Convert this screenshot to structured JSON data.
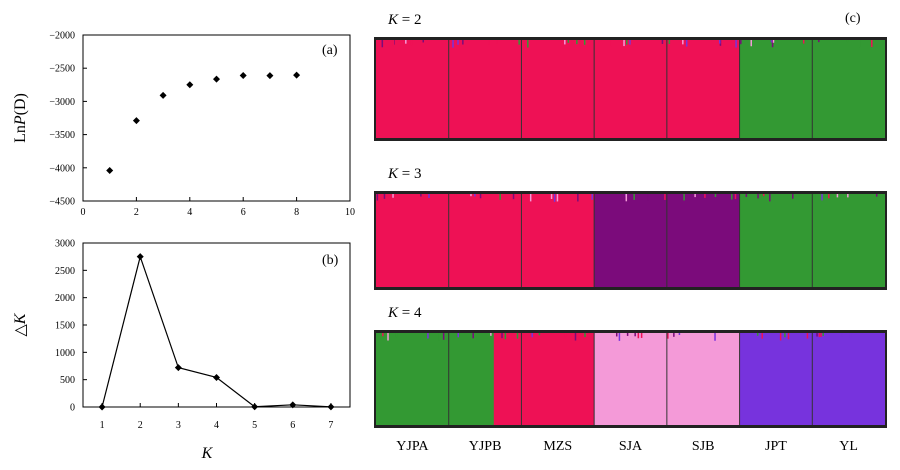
{
  "chart_data": [
    {
      "panel": "(a)",
      "type": "scatter",
      "xlabel": "",
      "ylabel_prefix": "Ln",
      "ylabel_italic": "P",
      "ylabel_suffix": "(D)",
      "xlim": [
        0,
        10
      ],
      "ylim": [
        -4500,
        -2000
      ],
      "xticks": [
        0,
        2,
        4,
        6,
        8,
        10
      ],
      "yticks": [
        -2000,
        -2500,
        -3000,
        -3500,
        -4000,
        -4500
      ],
      "points": [
        {
          "x": 1,
          "y": -4040
        },
        {
          "x": 2,
          "y": -3290
        },
        {
          "x": 3,
          "y": -2910
        },
        {
          "x": 4,
          "y": -2750
        },
        {
          "x": 5,
          "y": -2665
        },
        {
          "x": 6,
          "y": -2610
        },
        {
          "x": 7,
          "y": -2612
        },
        {
          "x": 8,
          "y": -2605
        }
      ],
      "grid": false
    },
    {
      "panel": "(b)",
      "type": "line",
      "xlabel": "K",
      "ylabel_prefix": "△",
      "ylabel_italic": "K",
      "xlim": [
        0.5,
        7.5
      ],
      "ylim": [
        0,
        3000
      ],
      "xticks": [
        1,
        2,
        3,
        4,
        5,
        6,
        7
      ],
      "yticks": [
        0,
        500,
        1000,
        1500,
        2000,
        2500,
        3000
      ],
      "x": [
        1,
        2,
        3,
        4,
        5,
        6,
        7
      ],
      "values": [
        0,
        2750,
        720,
        540,
        5,
        40,
        3
      ],
      "grid": false
    },
    {
      "panel": "(c)",
      "type": "bar",
      "stacked": true,
      "populations": [
        "YJPA",
        "YJPB",
        "MZS",
        "SJA",
        "SJB",
        "JPT",
        "YL"
      ],
      "colors": {
        "red": "#ee1155",
        "green": "#339933",
        "purple": "#7b0b7b",
        "pink": "#f49ad8",
        "blue": "#7733dd"
      },
      "rows": [
        {
          "label_k": "K",
          "label_val": " = 2",
          "pop_clusters": [
            [
              "red"
            ],
            [
              "red"
            ],
            [
              "red"
            ],
            [
              "red"
            ],
            [
              "red"
            ],
            [
              "green"
            ],
            [
              "green"
            ]
          ]
        },
        {
          "label_k": "K",
          "label_val": " = 3",
          "pop_clusters": [
            [
              "red"
            ],
            [
              "red"
            ],
            [
              "red"
            ],
            [
              "purple"
            ],
            [
              "purple"
            ],
            [
              "green"
            ],
            [
              "green"
            ]
          ]
        },
        {
          "label_k": "K",
          "label_val": " = 4",
          "pop_clusters": [
            [
              "green"
            ],
            [
              "green",
              "red"
            ],
            [
              "red"
            ],
            [
              "pink"
            ],
            [
              "pink"
            ],
            [
              "blue"
            ],
            [
              "blue"
            ]
          ]
        }
      ]
    }
  ]
}
